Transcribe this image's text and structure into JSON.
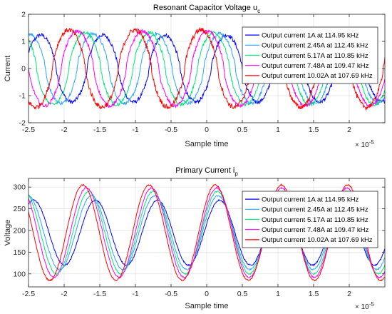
{
  "colors": {
    "background": "#ffffff",
    "axes": "#262626",
    "grid": "#e3e3e3"
  },
  "chart_data": [
    {
      "type": "line",
      "title_main": "Resonant Capacitor Voltage u",
      "title_sub": "c",
      "xlabel": "Sample time",
      "ylabel": "Current",
      "x_exponent_base": "× 10",
      "x_exponent_power": "-5",
      "xlim": [
        -2.5,
        2.5
      ],
      "ylim": [
        -2,
        2
      ],
      "xticks": [
        -2.5,
        -2,
        -1.5,
        -1,
        -0.5,
        0,
        0.5,
        1,
        1.5,
        2
      ],
      "xtick_labels": [
        "-2.5",
        "-2",
        "-1.5",
        "-1",
        "-0.5",
        "0",
        "0.5",
        "1",
        "1.5",
        "2"
      ],
      "yticks": [
        -2,
        -1,
        0,
        1,
        2
      ],
      "ytick_labels": [
        "-2",
        "-1",
        "0",
        "1",
        "2"
      ],
      "grid": true,
      "legend_position": "top-right",
      "series": [
        {
          "name": "Output current 1A at 114.95 kHz",
          "color": "#0000ff",
          "amplitude": 1.3,
          "freq_khz": 114.95,
          "peak_x": 2.02,
          "noise": 0.07
        },
        {
          "name": "Output current 2.45A at 112.45 kHz",
          "color": "#2aa3ff",
          "amplitude": 1.35,
          "freq_khz": 112.45,
          "peak_x": 1.96,
          "noise": 0.06
        },
        {
          "name": "Output current 5.17A at 110.85 kHz",
          "color": "#00e676",
          "amplitude": 1.4,
          "freq_khz": 110.85,
          "peak_x": 1.9,
          "noise": 0.06
        },
        {
          "name": "Output current 7.48A at 109.47 kHz",
          "color": "#ff00ff",
          "amplitude": 1.45,
          "freq_khz": 109.47,
          "peak_x": 1.84,
          "noise": 0.06
        },
        {
          "name": "Output current 10.02A at 107.69 kHz",
          "color": "#ff0000",
          "amplitude": 1.5,
          "freq_khz": 107.69,
          "peak_x": 1.78,
          "noise": 0.09
        }
      ]
    },
    {
      "type": "line",
      "title_main": "Primary Current i",
      "title_sub": "p",
      "xlabel": "Sample time",
      "ylabel": "Voltage",
      "x_exponent_base": "× 10",
      "x_exponent_power": "-5",
      "xlim": [
        -2.5,
        2.5
      ],
      "ylim": [
        70,
        320
      ],
      "xticks": [
        -2.5,
        -2,
        -1.5,
        -1,
        -0.5,
        0,
        0.5,
        1,
        1.5,
        2
      ],
      "xtick_labels": [
        "-2.5",
        "-2",
        "-1.5",
        "-1",
        "-0.5",
        "0",
        "0.5",
        "1",
        "1.5",
        "2"
      ],
      "yticks": [
        100,
        150,
        200,
        250,
        300
      ],
      "ytick_labels": [
        "100",
        "150",
        "200",
        "250",
        "300"
      ],
      "grid": true,
      "legend_position": "top-right",
      "series": [
        {
          "name": "Output current 1A at 114.95 kHz",
          "color": "#0000ff",
          "center": 195,
          "amplitude": 75,
          "freq_khz": 114.95,
          "peak_x": 0.18,
          "noise": 1.5
        },
        {
          "name": "Output current 2.45A at 112.45 kHz",
          "color": "#2aa3ff",
          "center": 195,
          "amplitude": 85,
          "freq_khz": 112.45,
          "peak_x": 0.16,
          "noise": 1.5
        },
        {
          "name": "Output current 5.17A at 110.85 kHz",
          "color": "#00e676",
          "center": 195,
          "amplitude": 95,
          "freq_khz": 110.85,
          "peak_x": 0.15,
          "noise": 1.5
        },
        {
          "name": "Output current 7.48A at 109.47 kHz",
          "color": "#ff00ff",
          "center": 195,
          "amplitude": 103,
          "freq_khz": 109.47,
          "peak_x": 0.14,
          "noise": 1.5
        },
        {
          "name": "Output current 10.02A at 107.69 kHz",
          "color": "#ff0000",
          "center": 195,
          "amplitude": 110,
          "freq_khz": 107.69,
          "peak_x": 0.12,
          "noise": 1.5
        }
      ]
    }
  ]
}
